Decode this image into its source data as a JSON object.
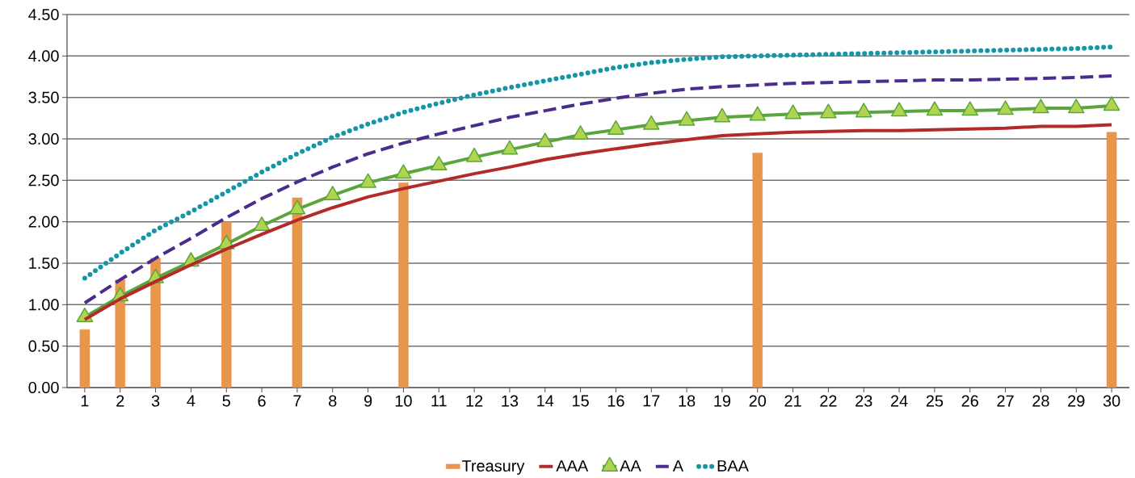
{
  "chart_data": {
    "type": "line",
    "categories": [
      "1",
      "2",
      "3",
      "4",
      "5",
      "6",
      "7",
      "8",
      "9",
      "10",
      "11",
      "12",
      "13",
      "14",
      "15",
      "16",
      "17",
      "18",
      "19",
      "20",
      "21",
      "22",
      "23",
      "24",
      "25",
      "26",
      "27",
      "28",
      "29",
      "30"
    ],
    "series": [
      {
        "name": "Treasury",
        "type": "bar",
        "color": "#e8964a",
        "values": [
          0.7,
          1.3,
          1.56,
          null,
          2.0,
          null,
          2.29,
          null,
          null,
          2.47,
          null,
          null,
          null,
          null,
          null,
          null,
          null,
          null,
          null,
          2.83,
          null,
          null,
          null,
          null,
          null,
          null,
          null,
          null,
          null,
          3.08
        ]
      },
      {
        "name": "AAA",
        "color": "#b22a2a",
        "line_style": "solid",
        "marker": "none",
        "values": [
          0.82,
          1.07,
          1.28,
          1.48,
          1.67,
          1.85,
          2.02,
          2.17,
          2.3,
          2.4,
          2.49,
          2.58,
          2.66,
          2.75,
          2.82,
          2.88,
          2.94,
          2.99,
          3.04,
          3.06,
          3.08,
          3.09,
          3.1,
          3.1,
          3.11,
          3.12,
          3.13,
          3.15,
          3.15,
          3.17
        ]
      },
      {
        "name": "AA",
        "color": "#5aa63c",
        "line_style": "solid",
        "marker": "triangle",
        "values": [
          0.85,
          1.1,
          1.32,
          1.52,
          1.73,
          1.95,
          2.15,
          2.32,
          2.47,
          2.58,
          2.68,
          2.78,
          2.87,
          2.96,
          3.05,
          3.11,
          3.17,
          3.22,
          3.26,
          3.28,
          3.3,
          3.31,
          3.32,
          3.33,
          3.34,
          3.34,
          3.35,
          3.37,
          3.37,
          3.4
        ]
      },
      {
        "name": "A",
        "color": "#4a2c8c",
        "line_style": "dashed",
        "marker": "none",
        "values": [
          1.02,
          1.3,
          1.56,
          1.8,
          2.05,
          2.28,
          2.48,
          2.66,
          2.82,
          2.95,
          3.06,
          3.16,
          3.26,
          3.34,
          3.42,
          3.49,
          3.55,
          3.6,
          3.63,
          3.65,
          3.67,
          3.68,
          3.69,
          3.7,
          3.71,
          3.71,
          3.72,
          3.73,
          3.74,
          3.76
        ]
      },
      {
        "name": "BAA",
        "color": "#1496a8",
        "line_style": "dotted",
        "marker": "none",
        "values": [
          1.32,
          1.62,
          1.9,
          2.12,
          2.36,
          2.6,
          2.82,
          3.02,
          3.18,
          3.32,
          3.43,
          3.53,
          3.62,
          3.7,
          3.78,
          3.86,
          3.92,
          3.96,
          3.99,
          4.0,
          4.01,
          4.02,
          4.03,
          4.04,
          4.05,
          4.06,
          4.07,
          4.08,
          4.09,
          4.11
        ]
      }
    ],
    "ylim": [
      0,
      4.5
    ],
    "yticks": [
      {
        "value": 0,
        "label": "0.00"
      },
      {
        "value": 0.5,
        "label": "0.50"
      },
      {
        "value": 1,
        "label": "1.00"
      },
      {
        "value": 1.5,
        "label": "1.50"
      },
      {
        "value": 2,
        "label": "2.00"
      },
      {
        "value": 2.5,
        "label": "2.50"
      },
      {
        "value": 3,
        "label": "3.00"
      },
      {
        "value": 3.5,
        "label": "3.50"
      },
      {
        "value": 4,
        "label": "4.00"
      },
      {
        "value": 4.5,
        "label": "4.50"
      }
    ],
    "grid": "y",
    "legend": "bottom"
  }
}
